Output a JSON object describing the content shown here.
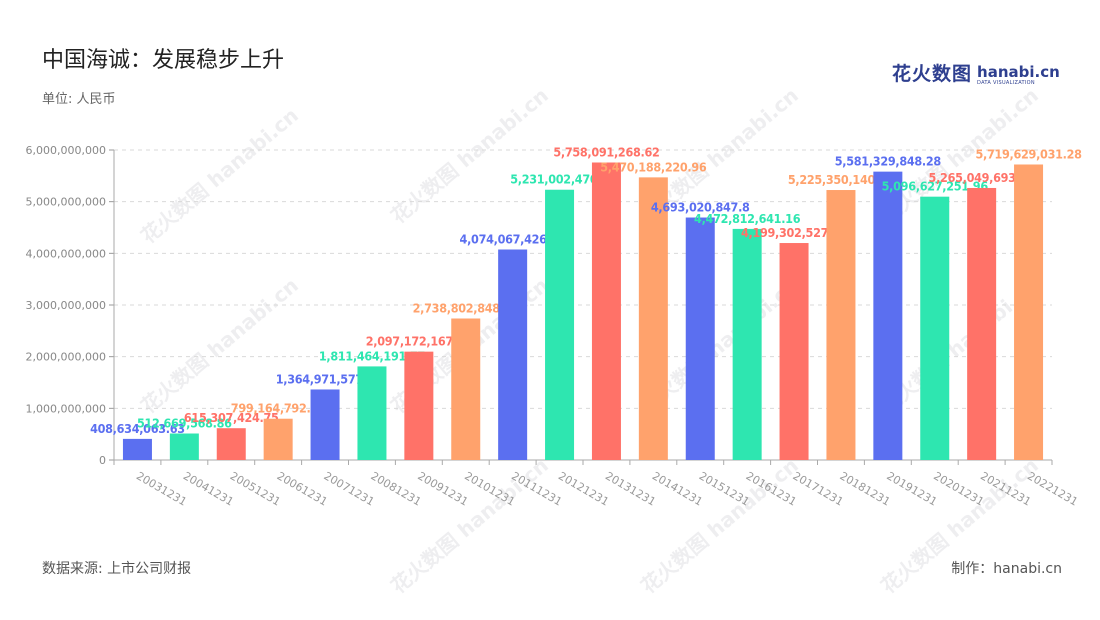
{
  "title": "中国海诚：发展稳步上升",
  "unit": "单位: 人民币",
  "source": "数据来源: 上市公司财报",
  "credit": "制作：hanabi.cn",
  "logo": {
    "cn": "花火数图",
    "en": "hanabi.cn",
    "sub": "DATA VISUALIZATION"
  },
  "watermark": "花火数图 hanabi.cn",
  "colors": [
    "#5b6ff0",
    "#2ee6b0",
    "#ff7268",
    "#ffa26c"
  ],
  "chart_data": {
    "type": "bar",
    "categories": [
      "20031231",
      "20041231",
      "20051231",
      "20061231",
      "20071231",
      "20081231",
      "20091231",
      "20101231",
      "20111231",
      "20121231",
      "20131231",
      "20141231",
      "20151231",
      "20161231",
      "20171231",
      "20181231",
      "20191231",
      "20201231",
      "20211231",
      "20221231"
    ],
    "values": [
      408634063.63,
      512669568.86,
      615307424.75,
      799164792.66,
      1364971577.8,
      1811464191.77,
      2097172167.09,
      2738802848.82,
      4074067426.19,
      5231002470.3,
      5758091268.62,
      5470188220.96,
      4693020847.8,
      4472812641.16,
      4199302527.82,
      5225350140.12,
      5581329848.28,
      5096627251.96,
      5265049693.77,
      5719629031.28
    ],
    "labels": [
      "408,634,063.63",
      "512,669,568.86",
      "615,307,424.75",
      "799,164,792.66",
      "1,364,971,577.8",
      "1,811,464,191.77",
      "2,097,172,167.09",
      "2,738,802,848.82",
      "4,074,067,426.19",
      "5,231,002,470.3",
      "5,758,091,268.62",
      "5,470,188,220.96",
      "4,693,020,847.8",
      "4,472,812,641.16",
      "4,199,302,527.82",
      "5,225,350,140.12",
      "5,581,329,848.28",
      "5,096,627,251.96",
      "5,265,049,693.77",
      "5,719,629,031.28"
    ],
    "yticks": [
      0,
      1000000000,
      2000000000,
      3000000000,
      4000000000,
      5000000000,
      6000000000
    ],
    "ytick_labels": [
      "0",
      "1,000,000,000",
      "2,000,000,000",
      "3,000,000,000",
      "4,000,000,000",
      "5,000,000,000",
      "6,000,000,000"
    ],
    "ylim": [
      0,
      6000000000
    ],
    "grid": true,
    "legend": "none"
  }
}
